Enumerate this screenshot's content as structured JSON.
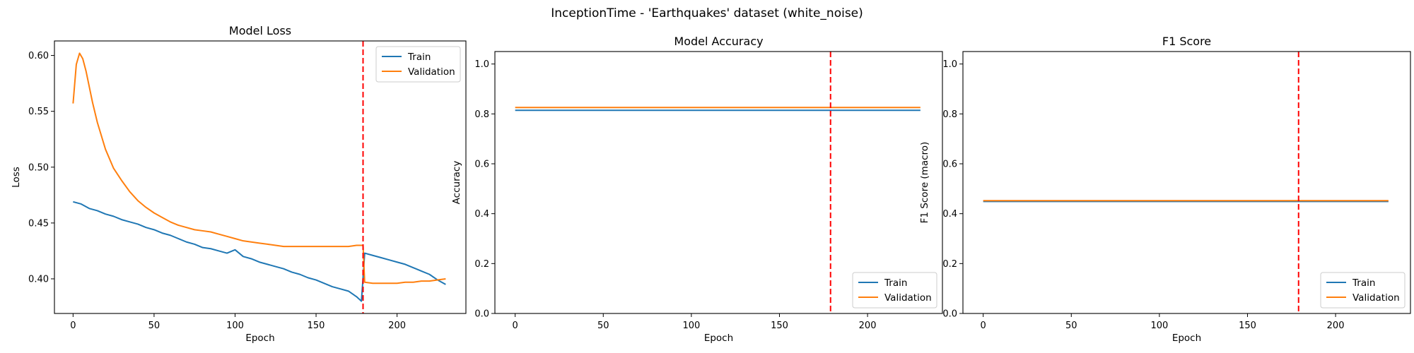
{
  "figure": {
    "suptitle": "InceptionTime - 'Earthquakes' dataset (white_noise)"
  },
  "colors": {
    "train": "#1f77b4",
    "validation": "#ff7f0e",
    "marker": "#ff0000",
    "axes": "#000000"
  },
  "chart_data": [
    {
      "type": "line",
      "title": "Model Loss",
      "xlabel": "Epoch",
      "ylabel": "Loss",
      "xlim": [
        -11.5,
        242.5
      ],
      "ylim": [
        0.369,
        0.613
      ],
      "xticks": [
        0,
        50,
        100,
        150,
        200
      ],
      "yticks": [
        0.4,
        0.45,
        0.5,
        0.55,
        0.6
      ],
      "ytick_decimals": 2,
      "legend_loc": "upper right",
      "vline_x": 179,
      "grid": false,
      "series": [
        {
          "name": "Train",
          "color_key": "train",
          "x": [
            0,
            5,
            10,
            15,
            20,
            25,
            30,
            35,
            40,
            45,
            50,
            55,
            60,
            65,
            70,
            75,
            80,
            85,
            90,
            95,
            100,
            105,
            110,
            115,
            120,
            125,
            130,
            135,
            140,
            145,
            150,
            155,
            160,
            165,
            170,
            175,
            178,
            179,
            180,
            185,
            190,
            195,
            200,
            205,
            210,
            215,
            220,
            225,
            230
          ],
          "y": [
            0.469,
            0.467,
            0.463,
            0.461,
            0.458,
            0.456,
            0.453,
            0.451,
            0.449,
            0.446,
            0.444,
            0.441,
            0.439,
            0.436,
            0.433,
            0.431,
            0.428,
            0.427,
            0.425,
            0.423,
            0.426,
            0.42,
            0.418,
            0.415,
            0.413,
            0.411,
            0.409,
            0.406,
            0.404,
            0.401,
            0.399,
            0.396,
            0.393,
            0.391,
            0.389,
            0.384,
            0.38,
            0.401,
            0.423,
            0.421,
            0.419,
            0.417,
            0.415,
            0.413,
            0.41,
            0.407,
            0.404,
            0.399,
            0.395
          ]
        },
        {
          "name": "Validation",
          "color_key": "validation",
          "x": [
            0,
            2,
            4,
            6,
            8,
            10,
            12,
            15,
            20,
            25,
            30,
            35,
            40,
            45,
            50,
            55,
            60,
            65,
            70,
            75,
            80,
            85,
            90,
            95,
            100,
            105,
            110,
            115,
            120,
            125,
            130,
            135,
            140,
            145,
            150,
            155,
            160,
            165,
            170,
            175,
            179,
            180,
            185,
            190,
            195,
            200,
            205,
            210,
            215,
            220,
            225,
            230
          ],
          "y": [
            0.557,
            0.592,
            0.602,
            0.597,
            0.586,
            0.572,
            0.558,
            0.54,
            0.516,
            0.499,
            0.488,
            0.478,
            0.47,
            0.464,
            0.459,
            0.455,
            0.451,
            0.448,
            0.446,
            0.444,
            0.443,
            0.442,
            0.44,
            0.438,
            0.436,
            0.434,
            0.433,
            0.432,
            0.431,
            0.43,
            0.429,
            0.429,
            0.429,
            0.429,
            0.429,
            0.429,
            0.429,
            0.429,
            0.429,
            0.43,
            0.43,
            0.397,
            0.396,
            0.396,
            0.396,
            0.396,
            0.397,
            0.397,
            0.398,
            0.398,
            0.399,
            0.4
          ]
        }
      ]
    },
    {
      "type": "line",
      "title": "Model Accuracy",
      "xlabel": "Epoch",
      "ylabel": "Accuracy",
      "xlim": [
        -11.5,
        242.5
      ],
      "ylim": [
        0.0,
        1.05
      ],
      "xticks": [
        0,
        50,
        100,
        150,
        200
      ],
      "yticks": [
        0.0,
        0.2,
        0.4,
        0.6,
        0.8,
        1.0
      ],
      "ytick_decimals": 1,
      "legend_loc": "lower right",
      "vline_x": 179,
      "grid": false,
      "series": [
        {
          "name": "Train",
          "color_key": "train",
          "x": [
            0,
            230
          ],
          "y": [
            0.8145,
            0.8145
          ]
        },
        {
          "name": "Validation",
          "color_key": "validation",
          "x": [
            0,
            230
          ],
          "y": [
            0.8258,
            0.8258
          ]
        }
      ]
    },
    {
      "type": "line",
      "title": "F1 Score",
      "xlabel": "Epoch",
      "ylabel": "F1 Score (macro)",
      "xlim": [
        -11.5,
        242.5
      ],
      "ylim": [
        0.0,
        1.05
      ],
      "xticks": [
        0,
        50,
        100,
        150,
        200
      ],
      "yticks": [
        0.0,
        0.2,
        0.4,
        0.6,
        0.8,
        1.0
      ],
      "ytick_decimals": 1,
      "legend_loc": "lower right",
      "vline_x": 179,
      "grid": false,
      "series": [
        {
          "name": "Train",
          "color_key": "train",
          "x": [
            0,
            230
          ],
          "y": [
            0.449,
            0.449
          ]
        },
        {
          "name": "Validation",
          "color_key": "validation",
          "x": [
            0,
            230
          ],
          "y": [
            0.452,
            0.452
          ]
        }
      ]
    }
  ]
}
